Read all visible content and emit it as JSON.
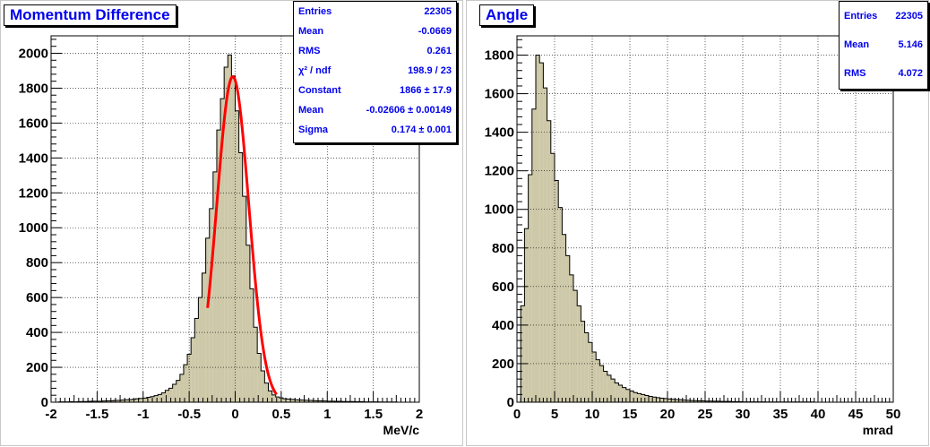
{
  "chart_data": [
    {
      "type": "bar",
      "title": "Momentum Difference",
      "xlabel": "MeV/c",
      "ylabel": "",
      "xlim": [
        -2,
        2
      ],
      "ylim": [
        0,
        2100
      ],
      "grid": true,
      "colors": {
        "fill": "#cdc8a8",
        "outline": "#000000",
        "fit": "#ff0000",
        "text": "#0000ee"
      },
      "xticks": [
        "-2",
        "-1.5",
        "-1",
        "-0.5",
        "0",
        "0.5",
        "1",
        "1.5",
        "2"
      ],
      "xtick_values": [
        -2,
        -1.5,
        -1,
        -0.5,
        0,
        0.5,
        1,
        1.5,
        2
      ],
      "yticks": [
        "0",
        "200",
        "400",
        "600",
        "800",
        "1000",
        "1200",
        "1400",
        "1600",
        "1800",
        "2000"
      ],
      "ytick_values": [
        0,
        200,
        400,
        600,
        800,
        1000,
        1200,
        1400,
        1600,
        1800,
        2000
      ],
      "bin_edges": [
        -2,
        2
      ],
      "values": [
        0,
        0,
        2,
        2,
        2,
        3,
        2,
        3,
        4,
        4,
        5,
        6,
        6,
        6,
        7,
        8,
        8,
        10,
        10,
        12,
        14,
        15,
        17,
        20,
        22,
        24,
        28,
        32,
        38,
        44,
        53,
        68,
        80,
        103,
        125,
        160,
        215,
        275,
        370,
        480,
        600,
        740,
        940,
        1110,
        1320,
        1560,
        1740,
        1920,
        1990,
        1870,
        1670,
        1430,
        1180,
        900,
        650,
        430,
        280,
        180,
        110,
        65,
        42,
        30,
        25,
        20,
        18,
        16,
        14,
        13,
        12,
        11,
        10,
        9,
        8,
        8,
        7,
        6,
        6,
        5,
        5,
        4,
        4,
        4,
        3,
        3,
        3,
        2,
        2,
        2,
        2,
        1,
        1,
        1,
        1,
        1,
        0,
        0,
        0,
        0,
        0,
        0
      ],
      "fit": {
        "function": "gaus",
        "constant": 1866,
        "mean": -0.02606,
        "sigma": 0.174,
        "range": [
          -0.3,
          0.45
        ]
      },
      "stats": [
        {
          "label": "Entries",
          "value": "22305"
        },
        {
          "label": "Mean",
          "value": "-0.0669"
        },
        {
          "label": "RMS",
          "value": "0.261"
        },
        {
          "label": "χ² / ndf",
          "value": "198.9 / 23"
        },
        {
          "label": "Constant",
          "value": "1866 ± 17.9"
        },
        {
          "label": "Mean",
          "value": "-0.02606 ± 0.00149"
        },
        {
          "label": "Sigma",
          "value": "0.174 ± 0.001"
        }
      ]
    },
    {
      "type": "bar",
      "title": "Angle",
      "xlabel": "mrad",
      "ylabel": "",
      "xlim": [
        0,
        50
      ],
      "ylim": [
        0,
        1900
      ],
      "grid": true,
      "colors": {
        "fill": "#cdc8a8",
        "outline": "#000000",
        "text": "#0000ee"
      },
      "xticks": [
        "0",
        "5",
        "10",
        "15",
        "20",
        "25",
        "30",
        "35",
        "40",
        "45",
        "50"
      ],
      "xtick_values": [
        0,
        5,
        10,
        15,
        20,
        25,
        30,
        35,
        40,
        45,
        50
      ],
      "yticks": [
        "0",
        "200",
        "400",
        "600",
        "800",
        "1000",
        "1200",
        "1400",
        "1600",
        "1800"
      ],
      "ytick_values": [
        0,
        200,
        400,
        600,
        800,
        1000,
        1200,
        1400,
        1600,
        1800
      ],
      "bin_edges": [
        0,
        50
      ],
      "values": [
        0,
        500,
        900,
        1180,
        1520,
        1800,
        1760,
        1630,
        1460,
        1290,
        1150,
        1010,
        870,
        760,
        660,
        580,
        500,
        420,
        360,
        310,
        260,
        220,
        190,
        160,
        140,
        120,
        100,
        88,
        76,
        66,
        58,
        50,
        45,
        40,
        35,
        30,
        27,
        24,
        21,
        19,
        17,
        15,
        14,
        13,
        11,
        10,
        9,
        8,
        7,
        7,
        6,
        6,
        5,
        5,
        4,
        4,
        4,
        3,
        3,
        3,
        2,
        2,
        2,
        2,
        2,
        2,
        1,
        1,
        1,
        1,
        1,
        1,
        1,
        1,
        1,
        1,
        1,
        1,
        1,
        0,
        0,
        0,
        0,
        0,
        0,
        0,
        0,
        0,
        0,
        0,
        0,
        0,
        0,
        0,
        0,
        0,
        0,
        0,
        0,
        0
      ],
      "stats": [
        {
          "label": "Entries",
          "value": "22305"
        },
        {
          "label": "Mean",
          "value": "5.146"
        },
        {
          "label": "RMS",
          "value": "4.072"
        }
      ]
    }
  ]
}
